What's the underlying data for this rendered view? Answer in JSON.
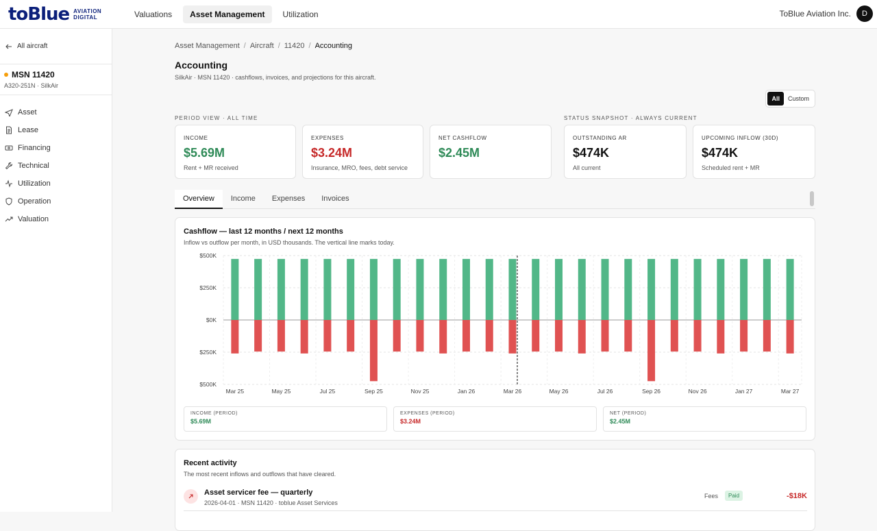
{
  "header": {
    "logo_word": "toBlue",
    "logo_sub_1": "AVIATION",
    "logo_sub_2": "DIGITAL",
    "nav": [
      "Valuations",
      "Asset Management",
      "Utilization"
    ],
    "org": "ToBlue Aviation Inc.",
    "avatar": "D"
  },
  "sidebar": {
    "back": "All aircraft",
    "msn": "MSN 11420",
    "msn_sub": "A320-251N · SilkAir",
    "status_color": "#f59e0b",
    "items": [
      {
        "label": "Asset",
        "icon": "plane-icon"
      },
      {
        "label": "Lease",
        "icon": "document-icon"
      },
      {
        "label": "Financing",
        "icon": "banknote-icon"
      },
      {
        "label": "Technical",
        "icon": "wrench-icon"
      },
      {
        "label": "Utilization",
        "icon": "activity-icon"
      },
      {
        "label": "Operation",
        "icon": "shield-icon"
      },
      {
        "label": "Valuation",
        "icon": "trend-up-icon"
      }
    ]
  },
  "breadcrumb": [
    "Asset Management",
    "Aircraft",
    "11420",
    "Accounting"
  ],
  "page": {
    "title": "Accounting",
    "subtitle": "SilkAir · MSN 11420 · cashflows, invoices, and projections for this aircraft."
  },
  "range_toggle": {
    "all": "All",
    "custom": "Custom"
  },
  "period_label": "PERIOD VIEW · ALL TIME",
  "status_label": "STATUS SNAPSHOT · ALWAYS CURRENT",
  "kpis": {
    "income": {
      "label": "INCOME",
      "value": "$5.69M",
      "sub": "Rent + MR received"
    },
    "expenses": {
      "label": "EXPENSES",
      "value": "$3.24M",
      "sub": "Insurance, MRO, fees, debt service"
    },
    "net": {
      "label": "NET CASHFLOW",
      "value": "$2.45M",
      "sub": ""
    },
    "ar": {
      "label": "OUTSTANDING AR",
      "value": "$474K",
      "sub": "All current"
    },
    "inflow": {
      "label": "UPCOMING INFLOW (30D)",
      "value": "$474K",
      "sub": "Scheduled rent + MR"
    }
  },
  "tabs": [
    "Overview",
    "Income",
    "Expenses",
    "Invoices"
  ],
  "chart_card": {
    "title": "Cashflow — last 12 months / next 12 months",
    "subtitle": "Inflow vs outflow per month, in USD thousands. The vertical line marks today."
  },
  "chart_data": {
    "type": "bar",
    "categories": [
      "Mar 25",
      "Apr 25",
      "May 25",
      "Jun 25",
      "Jul 25",
      "Aug 25",
      "Sep 25",
      "Oct 25",
      "Nov 25",
      "Dec 25",
      "Jan 26",
      "Feb 26",
      "Mar 26",
      "Apr 26",
      "May 26",
      "Jun 26",
      "Jul 26",
      "Aug 26",
      "Sep 26",
      "Oct 26",
      "Nov 26",
      "Dec 26",
      "Jan 27",
      "Feb 27",
      "Mar 27"
    ],
    "x_tick_labels": [
      "Mar 25",
      "May 25",
      "Jul 25",
      "Sep 25",
      "Nov 25",
      "Jan 26",
      "Mar 26",
      "May 26",
      "Jul 26",
      "Sep 26",
      "Nov 26",
      "Jan 27",
      "Mar 27"
    ],
    "series": [
      {
        "name": "Inflow",
        "color": "#52b788",
        "values": [
          474,
          474,
          474,
          474,
          474,
          474,
          474,
          474,
          474,
          474,
          474,
          474,
          474,
          474,
          474,
          474,
          474,
          474,
          474,
          474,
          474,
          474,
          474,
          474,
          474
        ]
      },
      {
        "name": "Outflow",
        "color": "#e05252",
        "values": [
          -260,
          -245,
          -245,
          -260,
          -245,
          -245,
          -475,
          -245,
          -245,
          -260,
          -245,
          -245,
          -260,
          -245,
          -245,
          -260,
          -245,
          -245,
          -475,
          -245,
          -245,
          -260,
          -245,
          -245,
          -260
        ]
      }
    ],
    "y_ticks": [
      500,
      250,
      0,
      -250,
      -500
    ],
    "y_tick_labels": [
      "$500K",
      "$250K",
      "$0K",
      "$250K",
      "$500K"
    ],
    "ylim": [
      -500,
      500
    ],
    "today_index": 12,
    "grid": true
  },
  "summary": {
    "income": {
      "label": "INCOME (PERIOD)",
      "value": "$5.69M"
    },
    "expenses": {
      "label": "EXPENSES (PERIOD)",
      "value": "$3.24M"
    },
    "net": {
      "label": "NET (PERIOD)",
      "value": "$2.45M"
    }
  },
  "activity": {
    "title": "Recent activity",
    "subtitle": "The most recent inflows and outflows that have cleared.",
    "rows": [
      {
        "name": "Asset servicer fee — quarterly",
        "meta": "2026-04-01 · MSN 11420 · toblue Asset Services",
        "category": "Fees",
        "status": "Paid",
        "amount": "-$18K"
      }
    ]
  }
}
